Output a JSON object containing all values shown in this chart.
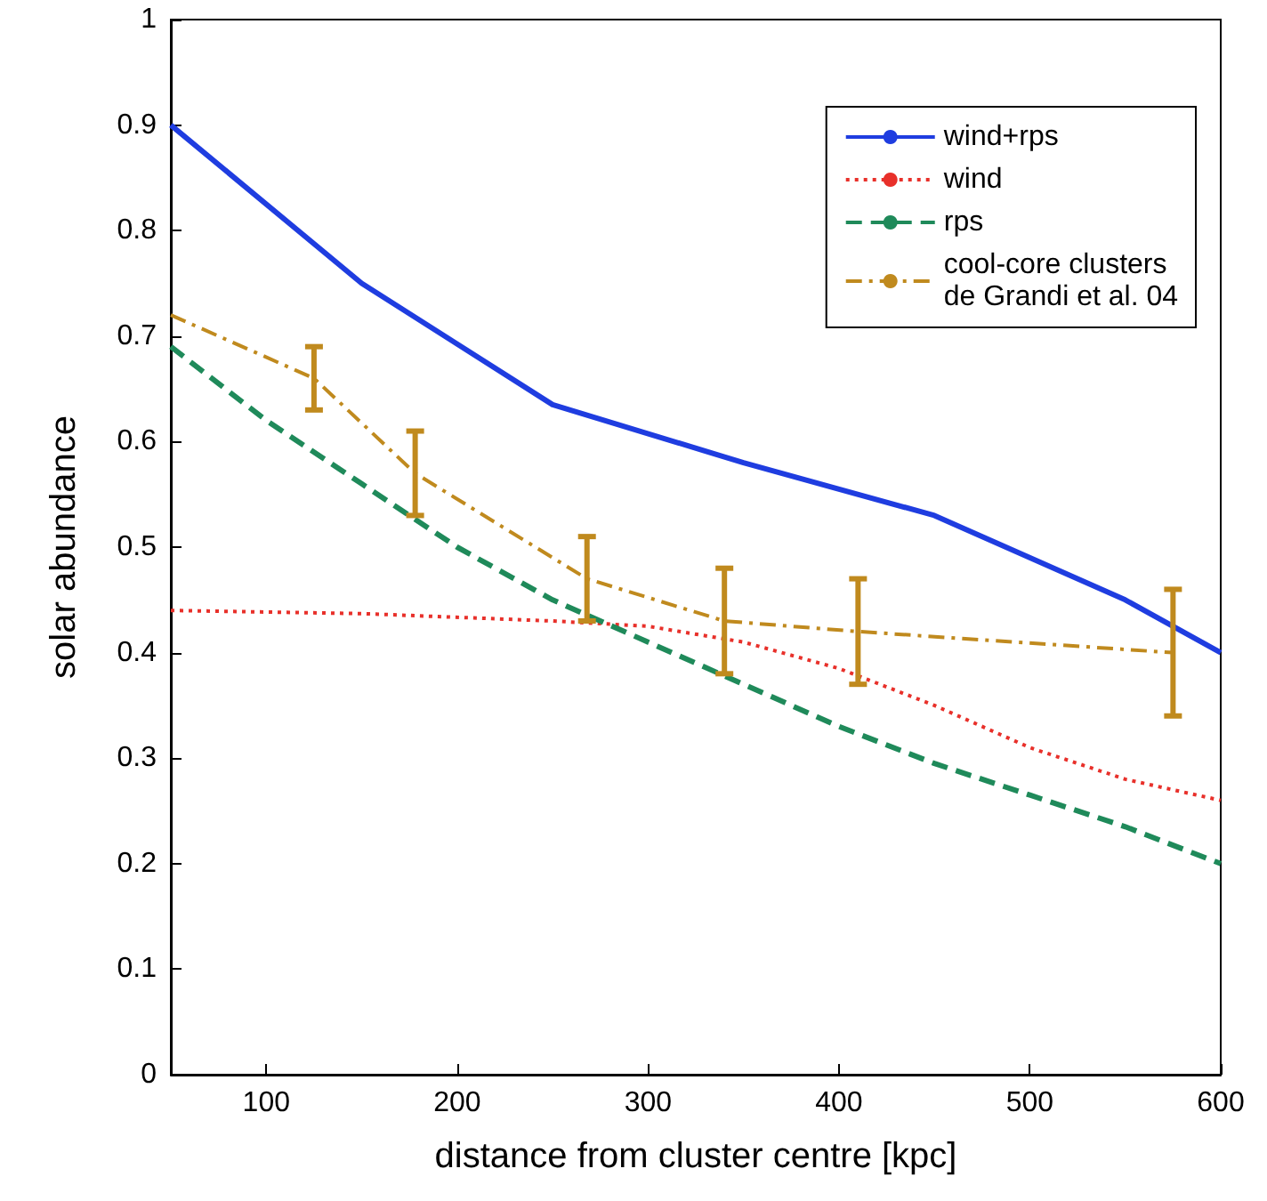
{
  "chart_data": {
    "type": "line",
    "xlabel": "distance from cluster centre [kpc]",
    "ylabel": "solar abundance",
    "xlim": [
      50,
      600
    ],
    "xticks": [
      100,
      200,
      300,
      400,
      500,
      600
    ],
    "ylim": [
      0,
      1
    ],
    "yticks": [
      0,
      0.1,
      0.2,
      0.3,
      0.4,
      0.5,
      0.6,
      0.7,
      0.8,
      0.9,
      1
    ],
    "grid": false,
    "legend": "top right",
    "marker": "none",
    "series": [
      {
        "name": "wind+rps",
        "color": "#1f3de0",
        "line_style": "solid",
        "x": [
          50,
          150,
          250,
          350,
          450,
          550,
          600
        ],
        "values": [
          0.9,
          0.75,
          0.635,
          0.58,
          0.53,
          0.45,
          0.4
        ]
      },
      {
        "name": "wind",
        "color": "#e8302a",
        "line_style": "dotted",
        "x": [
          50,
          150,
          250,
          300,
          350,
          400,
          450,
          500,
          550,
          600
        ],
        "values": [
          0.44,
          0.437,
          0.43,
          0.425,
          0.41,
          0.385,
          0.35,
          0.31,
          0.28,
          0.26
        ]
      },
      {
        "name": "rps",
        "color": "#1f8a5a",
        "line_style": "dashed",
        "x": [
          50,
          100,
          150,
          200,
          250,
          300,
          350,
          400,
          450,
          500,
          550,
          600
        ],
        "values": [
          0.69,
          0.62,
          0.56,
          0.5,
          0.45,
          0.41,
          0.37,
          0.33,
          0.295,
          0.265,
          0.235,
          0.2
        ]
      },
      {
        "name": "cool-core clusters\nde Grandi et al. 04",
        "color": "#c08a1e",
        "line_style": "dashdot",
        "x": [
          50,
          125,
          178,
          268,
          340,
          410,
          575
        ],
        "values": [
          0.72,
          0.66,
          0.57,
          0.47,
          0.43,
          0.42,
          0.4
        ],
        "errors": [
          null,
          0.03,
          0.04,
          0.04,
          0.05,
          0.05,
          0.06
        ]
      }
    ]
  }
}
